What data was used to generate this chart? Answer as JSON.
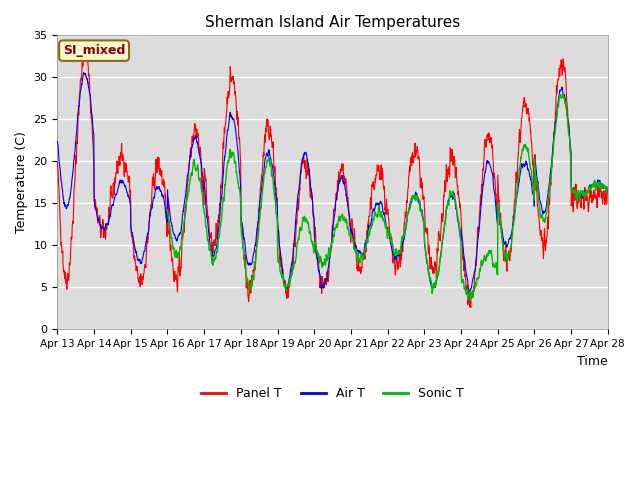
{
  "title": "Sherman Island Air Temperatures",
  "xlabel": "Time",
  "ylabel": "Temperature (C)",
  "ylim": [
    0,
    35
  ],
  "yticks": [
    0,
    5,
    10,
    15,
    20,
    25,
    30,
    35
  ],
  "xtick_labels": [
    "Apr 13",
    "Apr 14",
    "Apr 15",
    "Apr 16",
    "Apr 17",
    "Apr 18",
    "Apr 19",
    "Apr 20",
    "Apr 21",
    "Apr 22",
    "Apr 23",
    "Apr 24",
    "Apr 25",
    "Apr 26",
    "Apr 27",
    "Apr 28"
  ],
  "annotation_text": "SI_mixed",
  "annotation_color": "#8B0000",
  "annotation_bg": "#FFFACD",
  "annotation_border": "#8B6914",
  "bg_color": "#DCDCDC",
  "panel_color": "#FF0000",
  "air_color": "#0000FF",
  "sonic_color": "#00BB00",
  "legend_labels": [
    "Panel T",
    "Air T",
    "Sonic T"
  ],
  "figsize": [
    6.4,
    4.8
  ],
  "dpi": 100
}
